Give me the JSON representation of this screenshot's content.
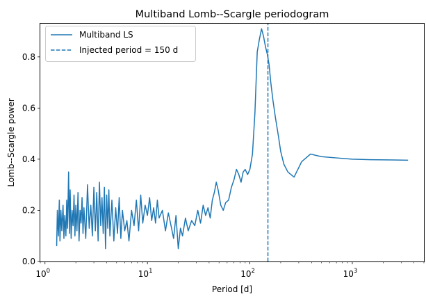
{
  "chart_data": {
    "type": "line",
    "title": "Multiband Lomb--Scargle periodogram",
    "xlabel": "Period [d]",
    "ylabel": "Lomb--Scargle power",
    "xscale": "log",
    "xlim": [
      0.9,
      5000
    ],
    "ylim": [
      0,
      0.93
    ],
    "xticks": [
      {
        "value": 1,
        "base": "10",
        "exp": "0"
      },
      {
        "value": 10,
        "base": "10",
        "exp": "1"
      },
      {
        "value": 100,
        "base": "10",
        "exp": "2"
      },
      {
        "value": 1000,
        "base": "10",
        "exp": "3"
      }
    ],
    "yticks": [
      {
        "value": 0.0,
        "label": "0.0"
      },
      {
        "value": 0.2,
        "label": "0.2"
      },
      {
        "value": 0.4,
        "label": "0.4"
      },
      {
        "value": 0.6,
        "label": "0.6"
      },
      {
        "value": 0.8,
        "label": "0.8"
      }
    ],
    "grid": false,
    "legend_position": "upper-left",
    "color": "#1f77b4",
    "series": [
      {
        "name": "Multiband LS",
        "style": "solid",
        "x": [
          1.3,
          1.32,
          1.35,
          1.38,
          1.4,
          1.43,
          1.46,
          1.5,
          1.53,
          1.56,
          1.6,
          1.63,
          1.66,
          1.7,
          1.73,
          1.76,
          1.8,
          1.84,
          1.88,
          1.92,
          1.96,
          2.0,
          2.05,
          2.1,
          2.15,
          2.2,
          2.25,
          2.3,
          2.35,
          2.4,
          2.5,
          2.6,
          2.7,
          2.8,
          2.9,
          3.0,
          3.1,
          3.2,
          3.3,
          3.4,
          3.5,
          3.6,
          3.7,
          3.8,
          3.9,
          4.0,
          4.1,
          4.2,
          4.3,
          4.5,
          4.7,
          4.9,
          5.1,
          5.3,
          5.5,
          5.7,
          6.0,
          6.3,
          6.6,
          7.0,
          7.4,
          7.8,
          8.2,
          8.6,
          9.0,
          9.5,
          10.0,
          10.5,
          11.0,
          11.5,
          12.0,
          12.5,
          13.0,
          14.0,
          15.0,
          16.0,
          17.0,
          18.0,
          19.0,
          20.0,
          21.0,
          22.0,
          23.5,
          25.0,
          27.0,
          29.0,
          31.0,
          33.0,
          35.0,
          37.0,
          39.0,
          41.0,
          43.0,
          45.0,
          47.0,
          49.0,
          52.0,
          55.0,
          58.0,
          62.0,
          66.0,
          70.0,
          74.0,
          78.0,
          82.0,
          86.0,
          90.0,
          95.0,
          100.0,
          106.0,
          112.0,
          118.0,
          124.0,
          130.0,
          136.0,
          142.0,
          148.0,
          154.0,
          160.0,
          168.0,
          178.0,
          190.0,
          200.0,
          215.0,
          235.0,
          270.0,
          320.0,
          390.0,
          500.0,
          700.0,
          1000.0,
          1500.0,
          2500.0,
          3500.0
        ],
        "y": [
          0.06,
          0.2,
          0.1,
          0.24,
          0.08,
          0.2,
          0.12,
          0.22,
          0.09,
          0.18,
          0.1,
          0.24,
          0.13,
          0.35,
          0.11,
          0.28,
          0.09,
          0.2,
          0.14,
          0.26,
          0.1,
          0.22,
          0.12,
          0.27,
          0.08,
          0.2,
          0.15,
          0.25,
          0.11,
          0.21,
          0.09,
          0.3,
          0.13,
          0.22,
          0.1,
          0.29,
          0.12,
          0.27,
          0.08,
          0.31,
          0.14,
          0.25,
          0.11,
          0.29,
          0.05,
          0.26,
          0.13,
          0.28,
          0.1,
          0.24,
          0.08,
          0.21,
          0.11,
          0.25,
          0.09,
          0.2,
          0.12,
          0.16,
          0.08,
          0.2,
          0.14,
          0.24,
          0.12,
          0.26,
          0.15,
          0.22,
          0.18,
          0.25,
          0.16,
          0.21,
          0.15,
          0.24,
          0.17,
          0.2,
          0.12,
          0.19,
          0.14,
          0.09,
          0.18,
          0.05,
          0.13,
          0.1,
          0.17,
          0.12,
          0.16,
          0.14,
          0.2,
          0.15,
          0.22,
          0.18,
          0.21,
          0.17,
          0.24,
          0.27,
          0.31,
          0.28,
          0.22,
          0.2,
          0.23,
          0.24,
          0.29,
          0.32,
          0.36,
          0.34,
          0.31,
          0.35,
          0.36,
          0.34,
          0.36,
          0.42,
          0.58,
          0.82,
          0.87,
          0.91,
          0.88,
          0.84,
          0.81,
          0.77,
          0.7,
          0.63,
          0.56,
          0.49,
          0.43,
          0.38,
          0.35,
          0.33,
          0.39,
          0.42,
          0.41,
          0.405,
          0.4,
          0.398,
          0.397,
          0.396
        ]
      },
      {
        "name": "Injected period = 150 d",
        "style": "dashed",
        "x": [
          150,
          150
        ],
        "y": [
          0,
          0.93
        ]
      }
    ]
  }
}
